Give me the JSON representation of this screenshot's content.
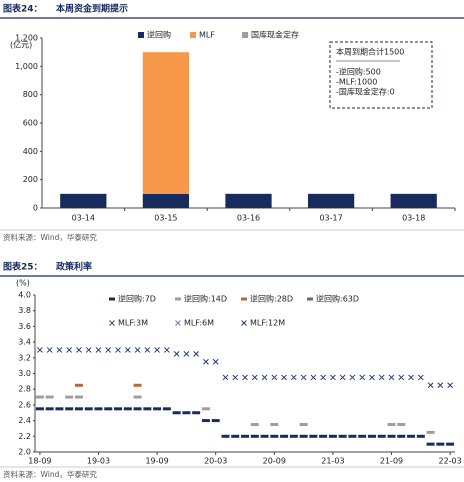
{
  "chart_data": [
    {
      "type": "bar",
      "stacked": true,
      "label": "图表24：",
      "title": "本周资金到期提示",
      "y_label": "(亿元)",
      "categories": [
        "03-14",
        "03-15",
        "03-16",
        "03-17",
        "03-18"
      ],
      "series": [
        {
          "name": "逆回购",
          "color": "#172c5c",
          "values": [
            100,
            100,
            100,
            100,
            100
          ]
        },
        {
          "name": "MLF",
          "color": "#f7974a",
          "values": [
            0,
            1000,
            0,
            0,
            0
          ]
        },
        {
          "name": "国库现金定存",
          "color": "#9e9e9e",
          "values": [
            0,
            0,
            0,
            0,
            0
          ]
        }
      ],
      "ylim": [
        0,
        1200
      ],
      "yticks": [
        0,
        200,
        400,
        600,
        800,
        {
          "value": 1000,
          "label": "1,000"
        },
        {
          "value": 1200,
          "label": "1,200"
        }
      ],
      "grid": false,
      "annotation": {
        "title": "本周到期合计1500",
        "lines": [
          "-逆回购:500",
          "-MLF:1000",
          "-国库现金定存:0"
        ]
      },
      "source": "资料来源：Wind，华泰研究"
    },
    {
      "type": "scatter",
      "label": "图表25：",
      "title": "政策利率",
      "y_label": "(%)",
      "categories": [
        "18-09",
        null,
        null,
        null,
        null,
        null,
        "19-03",
        null,
        null,
        null,
        null,
        null,
        "19-09",
        null,
        null,
        null,
        null,
        null,
        "20-03",
        null,
        null,
        null,
        null,
        null,
        "20-09",
        null,
        null,
        null,
        null,
        null,
        "21-03",
        null,
        null,
        null,
        null,
        null,
        "21-09",
        null,
        null,
        null,
        null,
        null,
        "22-03"
      ],
      "series": [
        {
          "name": "逆回购:7D",
          "color": "#172c5c",
          "marker": "dash",
          "values": [
            2.55,
            2.55,
            2.55,
            2.55,
            2.55,
            2.55,
            2.55,
            2.55,
            2.55,
            2.55,
            2.55,
            2.55,
            2.55,
            2.55,
            2.5,
            2.5,
            2.5,
            2.4,
            2.4,
            2.2,
            2.2,
            2.2,
            2.2,
            2.2,
            2.2,
            2.2,
            2.2,
            2.2,
            2.2,
            2.2,
            2.2,
            2.2,
            2.2,
            2.2,
            2.2,
            2.2,
            2.2,
            2.2,
            2.2,
            2.2,
            2.1,
            2.1,
            2.1
          ]
        },
        {
          "name": "逆回购:14D",
          "color": "#9e9e9e",
          "marker": "dash",
          "values": [
            2.7,
            2.7,
            null,
            2.7,
            2.7,
            null,
            null,
            null,
            null,
            null,
            2.7,
            null,
            null,
            null,
            null,
            null,
            null,
            2.55,
            null,
            null,
            null,
            null,
            2.35,
            null,
            2.35,
            null,
            null,
            2.35,
            null,
            null,
            null,
            null,
            null,
            null,
            null,
            null,
            2.35,
            2.35,
            null,
            null,
            2.25,
            null,
            null
          ]
        },
        {
          "name": "逆回购:28D",
          "color": "#b5683a",
          "marker": "dash",
          "values": [
            null,
            null,
            null,
            null,
            2.85,
            null,
            null,
            null,
            null,
            null,
            2.85,
            null,
            null,
            null,
            null,
            null,
            null,
            null,
            null,
            null,
            null,
            null,
            null,
            null,
            null,
            null,
            null,
            null,
            null,
            null,
            null,
            null,
            null,
            null,
            null,
            null,
            null,
            null,
            null,
            null,
            null,
            null,
            null
          ]
        },
        {
          "name": "逆回购:63D",
          "color": "#7a5b8c",
          "marker": "dash",
          "values": [
            null,
            null,
            null,
            null,
            null,
            null,
            null,
            null,
            null,
            null,
            null,
            null,
            null,
            null,
            null,
            null,
            null,
            null,
            null,
            null,
            null,
            null,
            null,
            null,
            null,
            null,
            null,
            null,
            null,
            null,
            null,
            null,
            null,
            null,
            null,
            null,
            null,
            null,
            null,
            null,
            null,
            null,
            null
          ]
        },
        {
          "name": "MLF:3M",
          "color": "#2f4f8f",
          "marker": "x",
          "values": [
            null,
            null,
            null,
            null,
            null,
            null,
            null,
            null,
            null,
            null,
            null,
            null,
            null,
            null,
            null,
            null,
            null,
            null,
            null,
            null,
            null,
            null,
            null,
            null,
            null,
            null,
            null,
            null,
            null,
            null,
            null,
            null,
            null,
            null,
            null,
            null,
            null,
            null,
            null,
            null,
            null,
            null,
            null
          ]
        },
        {
          "name": "MLF:6M",
          "color": "#5b7fbf",
          "marker": "x",
          "values": [
            null,
            null,
            null,
            null,
            null,
            null,
            null,
            null,
            null,
            null,
            null,
            null,
            null,
            null,
            null,
            null,
            null,
            null,
            null,
            null,
            null,
            null,
            null,
            null,
            null,
            null,
            null,
            null,
            null,
            null,
            null,
            null,
            null,
            null,
            null,
            null,
            null,
            null,
            null,
            null,
            null,
            null,
            null
          ]
        },
        {
          "name": "MLF:12M",
          "color": "#1f3a78",
          "marker": "x",
          "values": [
            3.3,
            3.3,
            3.3,
            3.3,
            3.3,
            3.3,
            3.3,
            3.3,
            3.3,
            3.3,
            3.3,
            3.3,
            3.3,
            3.3,
            3.25,
            3.25,
            3.25,
            3.15,
            3.15,
            2.95,
            2.95,
            2.95,
            2.95,
            2.95,
            2.95,
            2.95,
            2.95,
            2.95,
            2.95,
            2.95,
            2.95,
            2.95,
            2.95,
            2.95,
            2.95,
            2.95,
            2.95,
            2.95,
            2.95,
            2.95,
            2.85,
            2.85,
            2.85
          ]
        }
      ],
      "ylim": [
        2,
        4
      ],
      "yticks": [
        {
          "value": 2,
          "label": "2.0"
        },
        2.2,
        2.4,
        2.6,
        2.8,
        {
          "value": 3,
          "label": "3.0"
        },
        3.2,
        3.4,
        3.6,
        3.8,
        {
          "value": 4,
          "label": "4.0"
        }
      ],
      "grid": false,
      "source": "资料来源：Wind，华泰研究"
    }
  ]
}
